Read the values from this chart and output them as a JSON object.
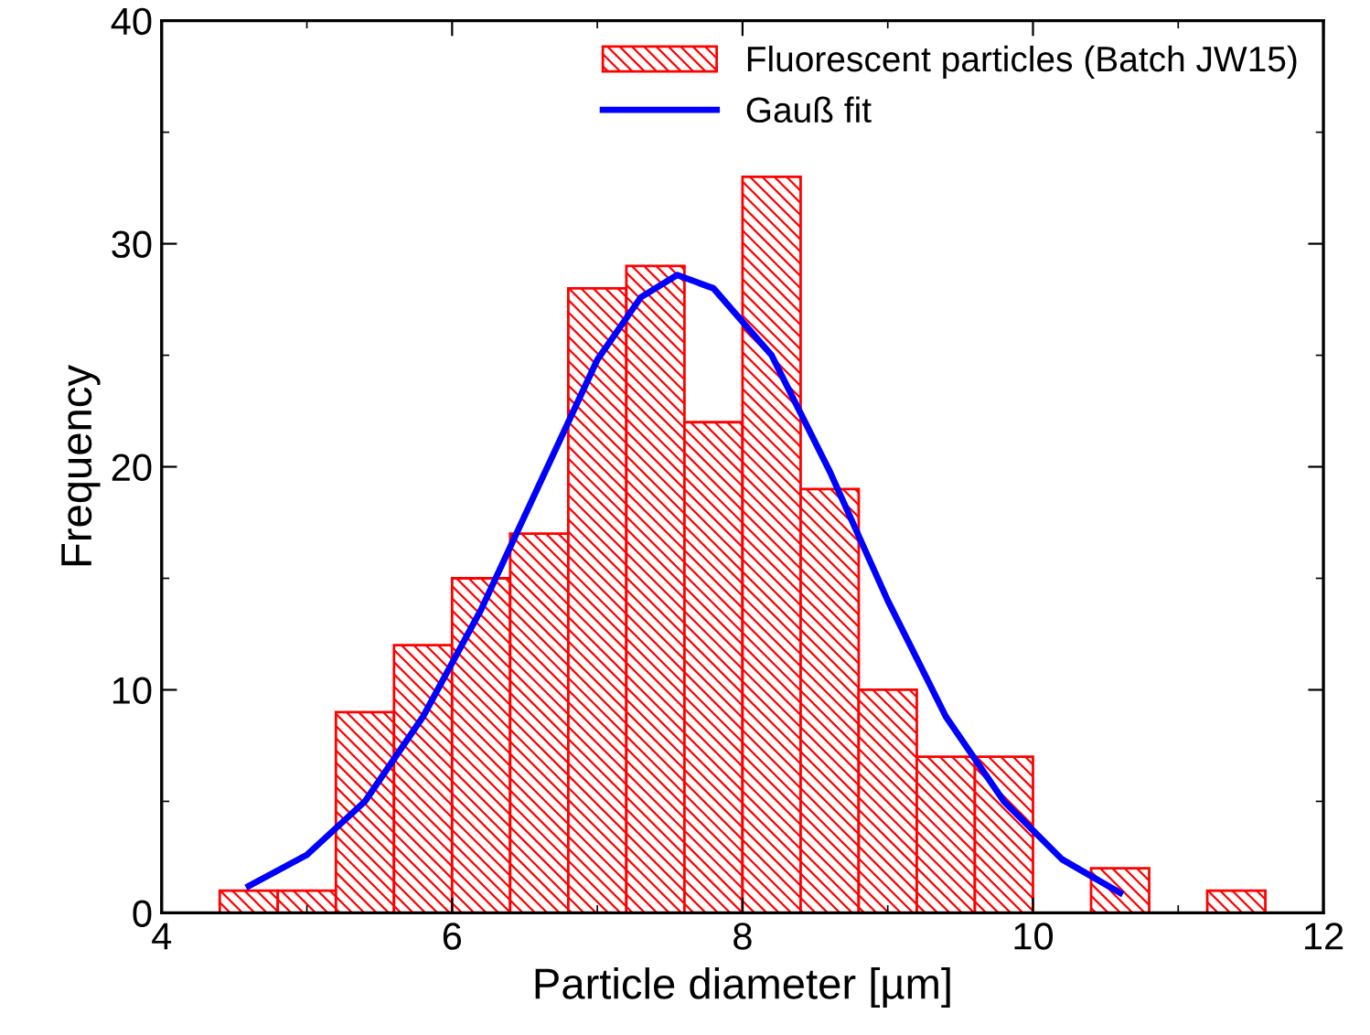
{
  "chart_data": {
    "type": "histogram",
    "xlabel": "Particle diameter [µm]",
    "ylabel": "Frequency",
    "bins": [
      4.4,
      4.8,
      5.2,
      5.6,
      6.0,
      6.4,
      6.8,
      7.2,
      7.6,
      8.0,
      8.4,
      8.8,
      9.2,
      9.6,
      10.0,
      10.4,
      10.8,
      11.2,
      11.6
    ],
    "series": [
      {
        "name": "Fluorescent particles (Batch JW15)",
        "color": "#ff0000",
        "values": [
          1,
          1,
          9,
          12,
          15,
          17,
          28,
          29,
          22,
          33,
          19,
          10,
          7,
          7,
          0,
          2,
          0,
          1
        ]
      },
      {
        "name": "Gauß fit",
        "type": "line",
        "color": "#0000ff",
        "x": [
          4.6,
          5.0,
          5.4,
          5.8,
          6.2,
          6.6,
          7.0,
          7.3,
          7.55,
          7.8,
          8.2,
          8.6,
          9.0,
          9.4,
          9.8,
          10.2,
          10.6
        ],
        "values": [
          1.2,
          2.6,
          5.0,
          8.8,
          13.6,
          19.2,
          24.8,
          27.6,
          28.6,
          28.0,
          25.0,
          19.8,
          14.0,
          8.8,
          5.0,
          2.4,
          0.9
        ]
      }
    ],
    "xlim": [
      4,
      12
    ],
    "ylim": [
      0,
      40
    ],
    "xticks": [
      4,
      6,
      8,
      10,
      12
    ],
    "yticks": [
      0,
      10,
      20,
      30,
      40
    ],
    "grid": false,
    "legend": "top right"
  }
}
